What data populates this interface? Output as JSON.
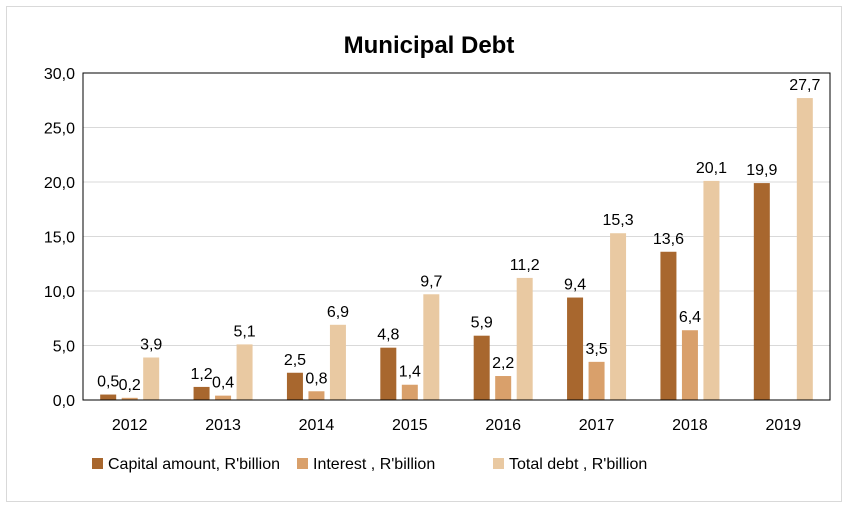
{
  "chart_data": {
    "type": "bar",
    "title": "Municipal Debt",
    "categories": [
      "2012",
      "2013",
      "2014",
      "2015",
      "2016",
      "2017",
      "2018",
      "2019"
    ],
    "series": [
      {
        "name": "Capital amount, R'billion",
        "color": "#a8672e",
        "values": [
          0.5,
          1.2,
          2.5,
          4.8,
          5.9,
          9.4,
          13.6,
          19.9
        ],
        "labels": [
          "0,5",
          "1,2",
          "2,5",
          "4,8",
          "5,9",
          "9,4",
          "13,6",
          "19,9"
        ]
      },
      {
        "name": "Interest , R'billion",
        "color": "#d9a06b",
        "values": [
          0.2,
          0.4,
          0.8,
          1.4,
          2.2,
          3.5,
          6.4,
          null
        ],
        "labels": [
          "0,2",
          "0,4",
          "0,8",
          "1,4",
          "2,2",
          "3,5",
          "6,4",
          ""
        ]
      },
      {
        "name": "Total debt , R'billion",
        "color": "#e9c9a2",
        "values": [
          3.9,
          5.1,
          6.9,
          9.7,
          11.2,
          15.3,
          20.1,
          27.7
        ],
        "labels": [
          "3,9",
          "5,1",
          "6,9",
          "9,7",
          "11,2",
          "15,3",
          "20,1",
          "27,7"
        ]
      }
    ],
    "ylim": [
      0,
      30
    ],
    "yticks": [
      0,
      5,
      10,
      15,
      20,
      25,
      30
    ],
    "ytick_labels": [
      "0,0",
      "5,0",
      "10,0",
      "15,0",
      "20,0",
      "25,0",
      "30,0"
    ],
    "grid": true,
    "legend_position": "bottom"
  }
}
